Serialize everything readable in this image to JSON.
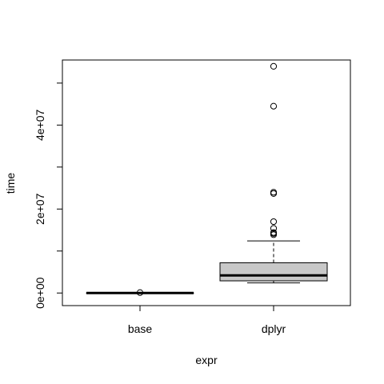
{
  "chart_data": {
    "type": "box",
    "title": "",
    "xlabel": "expr",
    "ylabel": "time",
    "ylim": [
      -3000000,
      55500000
    ],
    "yticks": [
      {
        "value": 0,
        "label": "0e+00"
      },
      {
        "value": 10000000,
        "label": ""
      },
      {
        "value": 20000000,
        "label": "2e+07"
      },
      {
        "value": 30000000,
        "label": ""
      },
      {
        "value": 40000000,
        "label": "4e+07"
      },
      {
        "value": 50000000,
        "label": ""
      }
    ],
    "categories": [
      "base",
      "dplyr"
    ],
    "boxes": [
      {
        "name": "base",
        "whisker_low": 0,
        "q1": 0,
        "median": 0,
        "q3": 0,
        "whisker_high": 0,
        "outliers": [
          100000
        ]
      },
      {
        "name": "dplyr",
        "whisker_low": 2400000,
        "q1": 2900000,
        "median": 4200000,
        "q3": 7200000,
        "whisker_high": 12400000,
        "outliers": [
          13900000,
          14200000,
          14400000,
          15400000,
          17000000,
          23700000,
          24000000,
          44500000,
          54000000
        ]
      }
    ],
    "box_fill": "#c8c8c8",
    "line_color": "#000000"
  }
}
